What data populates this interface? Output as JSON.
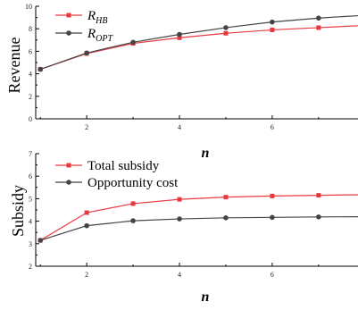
{
  "chart_data": [
    {
      "type": "line",
      "ylabel": "Revenue",
      "xlabel": "n",
      "xlim": [
        0.9,
        7.85
      ],
      "ylim": [
        0,
        10
      ],
      "xticks": [
        2,
        4,
        6
      ],
      "yticks": [
        0,
        2,
        4,
        6,
        8,
        10
      ],
      "legend_position": "top-left",
      "x": [
        1,
        2,
        3,
        4,
        5,
        6,
        7,
        8
      ],
      "series": [
        {
          "name": "R_HB",
          "label_main": "R",
          "label_sub": "HB",
          "color": "#e8393f",
          "marker": "square",
          "values": [
            4.4,
            5.8,
            6.7,
            7.2,
            7.6,
            7.9,
            8.1,
            8.3
          ]
        },
        {
          "name": "R_OPT",
          "label_main": "R",
          "label_sub": "OPT",
          "color": "#444444",
          "marker": "circle",
          "values": [
            4.4,
            5.85,
            6.8,
            7.5,
            8.1,
            8.6,
            8.95,
            9.2
          ]
        }
      ]
    },
    {
      "type": "line",
      "ylabel": "Subsidy",
      "xlabel": "n",
      "xlim": [
        0.9,
        7.85
      ],
      "ylim": [
        2,
        7
      ],
      "xticks": [
        2,
        4,
        6
      ],
      "yticks": [
        2,
        3,
        4,
        5,
        6,
        7
      ],
      "legend_position": "top-left",
      "x": [
        1,
        2,
        3,
        4,
        5,
        6,
        7,
        8
      ],
      "series": [
        {
          "name": "Total subsidy",
          "color": "#e8393f",
          "marker": "square",
          "values": [
            3.15,
            4.38,
            4.78,
            4.97,
            5.07,
            5.12,
            5.15,
            5.18
          ]
        },
        {
          "name": "Opportunity cost",
          "color": "#444444",
          "marker": "circle",
          "values": [
            3.15,
            3.8,
            4.02,
            4.1,
            4.15,
            4.17,
            4.19,
            4.2
          ]
        }
      ]
    }
  ]
}
